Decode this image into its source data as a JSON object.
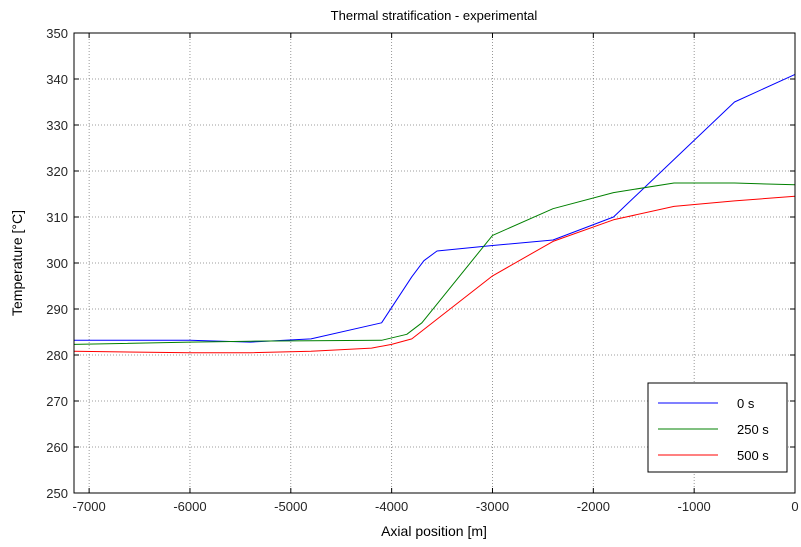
{
  "chart_data": {
    "type": "line",
    "title": "Thermal stratification - experimental",
    "xlabel": "Axial position [m]",
    "ylabel": "Temperature [°C]",
    "xlim": [
      -7150,
      0
    ],
    "ylim": [
      250,
      350
    ],
    "xticks": [
      -7000,
      -6000,
      -5000,
      -4000,
      -3000,
      -2000,
      -1000,
      0
    ],
    "yticks": [
      250,
      260,
      270,
      280,
      290,
      300,
      310,
      320,
      330,
      340,
      350
    ],
    "grid": true,
    "legend_position": "bottom-right",
    "series": [
      {
        "name": "0 s",
        "color": "#0000ff",
        "x": [
          -7150,
          -6000,
          -5400,
          -4800,
          -4100,
          -3800,
          -3680,
          -3550,
          -3000,
          -2400,
          -1800,
          -1200,
          -600,
          0
        ],
        "y": [
          283.2,
          283.2,
          282.8,
          283.5,
          287.0,
          297.0,
          300.5,
          302.6,
          303.8,
          305.0,
          310.0,
          322.5,
          335.0,
          341.0
        ]
      },
      {
        "name": "250 s",
        "color": "#008000",
        "x": [
          -7150,
          -6000,
          -5400,
          -4800,
          -4100,
          -3850,
          -3700,
          -3000,
          -2400,
          -1800,
          -1200,
          -600,
          0
        ],
        "y": [
          282.3,
          282.8,
          283.0,
          283.1,
          283.2,
          284.5,
          287.0,
          306.0,
          311.8,
          315.3,
          317.4,
          317.4,
          317.0
        ]
      },
      {
        "name": "500 s",
        "color": "#ff0000",
        "x": [
          -7150,
          -6000,
          -5400,
          -4800,
          -4200,
          -4000,
          -3800,
          -3000,
          -2400,
          -1800,
          -1200,
          -600,
          0
        ],
        "y": [
          280.8,
          280.5,
          280.5,
          280.8,
          281.5,
          282.3,
          283.5,
          297.2,
          304.7,
          309.4,
          312.3,
          313.5,
          314.5
        ]
      }
    ]
  }
}
